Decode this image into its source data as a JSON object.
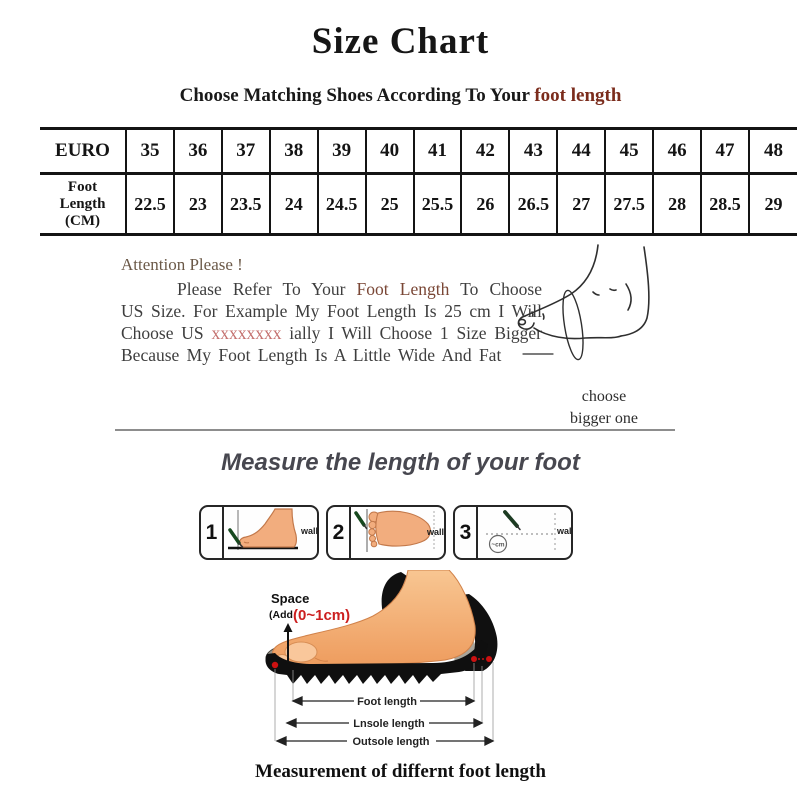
{
  "title": "Size Chart",
  "subtitle": {
    "text": "Choose Matching Shoes According To Your ",
    "highlight": "foot length"
  },
  "size_table": {
    "row1_header": "EURO",
    "row2_header": "Foot\nLength\n(CM)",
    "euro_sizes": [
      "35",
      "36",
      "37",
      "38",
      "39",
      "40",
      "41",
      "42",
      "43",
      "44",
      "45",
      "46",
      "47",
      "48"
    ],
    "foot_lengths_cm": [
      "22.5",
      "23",
      "23.5",
      "24",
      "24.5",
      "25",
      "25.5",
      "26",
      "26.5",
      "27",
      "27.5",
      "28",
      "28.5",
      "29"
    ]
  },
  "attention": {
    "heading": "Attention Please !",
    "part1": "Please Refer To Your ",
    "highlight1": "Foot Length",
    "part2": " To Choose US Size. For Example My Foot Length Is 25 cm I Will Choose US ",
    "highlight2": "xxxxxxxx",
    "part3": " ially I Will Choose 1 Size Bigger Because My Foot Length Is A Little Wide And Fat"
  },
  "foot_sketch": {
    "caption_line1": "choose",
    "caption_line2": "bigger one"
  },
  "measure_section": {
    "heading": "Measure the length of your foot",
    "steps": [
      {
        "number": "1",
        "wall_label": "wall"
      },
      {
        "number": "2",
        "wall_label": "wall"
      },
      {
        "number": "3",
        "wall_label": "wall",
        "circle_label": "~cm"
      }
    ]
  },
  "diagram": {
    "space_label": "Space",
    "space_add_label": "(Add",
    "space_value": "(0~1cm)",
    "arrow_labels": [
      "Foot length",
      "Lnsole length",
      "Outsole length"
    ]
  },
  "bottom_caption": "Measurement of differnt foot length",
  "colors": {
    "highlight_red_brown": "#7b2c1c",
    "attention_heading": "#6b5948",
    "xxx_red": "#c4706e",
    "diagram_red": "#cc2020",
    "pen_green": "#17491f",
    "skin": "#f2ad7e"
  }
}
